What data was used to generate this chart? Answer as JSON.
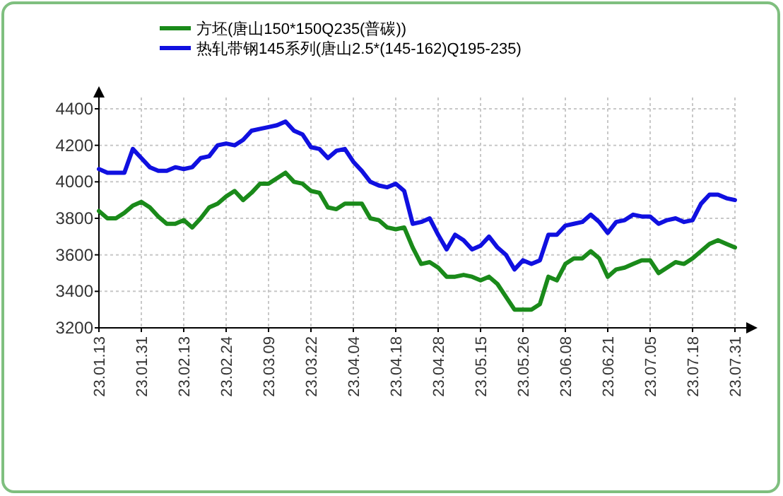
{
  "chart_data": {
    "type": "line",
    "categories": [
      "23.01.13",
      null,
      null,
      null,
      null,
      "23.01.31",
      null,
      null,
      null,
      null,
      "23.02.13",
      null,
      null,
      null,
      null,
      "23.02.24",
      null,
      null,
      null,
      null,
      "23.03.09",
      null,
      null,
      null,
      null,
      "23.03.22",
      null,
      null,
      null,
      null,
      "23.04.04",
      null,
      null,
      null,
      null,
      "23.04.18",
      null,
      null,
      null,
      null,
      "23.04.28",
      null,
      null,
      null,
      null,
      "23.05.15",
      null,
      null,
      null,
      null,
      "23.05.26",
      null,
      null,
      null,
      null,
      "23.06.08",
      null,
      null,
      null,
      null,
      "23.06.21",
      null,
      null,
      null,
      null,
      "23.07.05",
      null,
      null,
      null,
      null,
      "23.07.18",
      null,
      null,
      null,
      null,
      "23.07.31"
    ],
    "series": [
      {
        "name": "方坯(唐山150*150Q235(普碳))",
        "color": "#1a8a1a",
        "values": [
          3840,
          3800,
          3800,
          3830,
          3870,
          3890,
          3860,
          3810,
          3770,
          3770,
          3790,
          3750,
          3800,
          3860,
          3880,
          3920,
          3950,
          3900,
          3940,
          3990,
          3990,
          4020,
          4050,
          4000,
          3990,
          3950,
          3940,
          3860,
          3850,
          3880,
          3880,
          3880,
          3800,
          3790,
          3750,
          3740,
          3750,
          3640,
          3550,
          3560,
          3530,
          3480,
          3480,
          3490,
          3480,
          3460,
          3480,
          3440,
          3370,
          3300,
          3300,
          3300,
          3330,
          3480,
          3460,
          3550,
          3580,
          3580,
          3620,
          3580,
          3480,
          3520,
          3530,
          3550,
          3570,
          3570,
          3500,
          3530,
          3560,
          3550,
          3580,
          3620,
          3660,
          3680,
          3660,
          3640
        ]
      },
      {
        "name": "热轧带钢145系列(唐山2.5*(145-162)Q195-235)",
        "color": "#1010e0",
        "values": [
          4070,
          4050,
          4050,
          4050,
          4180,
          4130,
          4080,
          4060,
          4060,
          4080,
          4070,
          4080,
          4130,
          4140,
          4200,
          4210,
          4200,
          4230,
          4280,
          4290,
          4300,
          4310,
          4330,
          4280,
          4260,
          4190,
          4180,
          4130,
          4170,
          4180,
          4110,
          4060,
          4000,
          3980,
          3970,
          3990,
          3950,
          3770,
          3780,
          3800,
          3710,
          3630,
          3710,
          3680,
          3630,
          3650,
          3700,
          3640,
          3600,
          3520,
          3570,
          3550,
          3570,
          3710,
          3710,
          3760,
          3770,
          3780,
          3820,
          3780,
          3720,
          3780,
          3790,
          3820,
          3810,
          3810,
          3770,
          3790,
          3800,
          3780,
          3790,
          3880,
          3930,
          3930,
          3910,
          3900
        ]
      }
    ],
    "ylim": [
      3200,
      4400
    ],
    "yticks": [
      3200,
      3400,
      3600,
      3800,
      4000,
      4200,
      4400
    ],
    "grid": true,
    "legend": "top"
  }
}
